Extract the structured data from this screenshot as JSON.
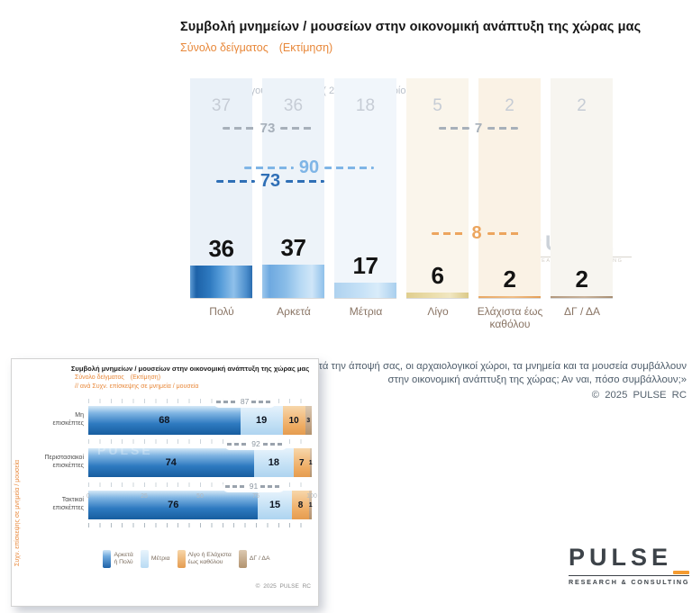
{
  "colors": {
    "accent_orange": "#E8883A",
    "bar_dark_blue": "#2E75B6",
    "bar_light_blue": "#BDD7EE",
    "bar_gold": "#E0CE8E",
    "bar_orange": "#ECA55E",
    "bar_tan": "#BFA183",
    "annotation_gray": "#A7B0BA",
    "annotation_blue_light": "#7FB5E6",
    "annotation_blue_dark": "#2F6FB6",
    "logo_orange": "#F59B30",
    "logo_dark": "#3D4349"
  },
  "header": {
    "title": "Συμβολή μνημείων / μουσείων στην οικονομική ανάπτυξη της χώρας μας",
    "sample_label": "Σύνολο δείγματος",
    "estimate_label": "(Εκτίμηση)"
  },
  "top_chart": {
    "previous_note": "Προηγούμενη έρευνα ( 20 - 28 Ιανουαρίου 2025 )",
    "columns": [
      {
        "label": "Πολύ",
        "value": 36,
        "previous": 37
      },
      {
        "label": "Αρκετά",
        "value": 37,
        "previous": 36
      },
      {
        "label": "Μέτρια",
        "value": 17,
        "previous": 18
      },
      {
        "label": "Λίγο",
        "value": 6,
        "previous": 5
      },
      {
        "label": "Ελάχιστα έως καθόλου",
        "value": 2,
        "previous": 2
      },
      {
        "label": "ΔΓ / ΔΑ",
        "value": 2,
        "previous": 2
      }
    ],
    "aggregates": {
      "previous_top2": 73,
      "previous_bottom2": 7,
      "current_top3": 90,
      "current_top2": 73,
      "current_bottom2": 8
    }
  },
  "question": {
    "line1": "«Κατά την άποψή σας, οι αρχαιολογικοί χώροι, τα μνημεία και τα μουσεία συμβάλλουν",
    "line2": "στην οικονομική ανάπτυξη της χώρας; Αν ναι, πόσο συμβάλλουν;»",
    "copyright": "© 2025 PULSE RC"
  },
  "bottom_chart": {
    "title": "Συμβολή μνημείων / μουσείων στην οικονομική ανάπτυξη της χώρας μας",
    "sample_label": "Σύνολο δείγματος",
    "estimate_label": "(Εκτίμηση)",
    "breakdown_label": "// ανά Συχν. επίσκεψης σε μνημεία / μουσεία",
    "rotated_axis_label": "Συχν. επίσκεψης σε μνημεία / μουσεία",
    "rows": [
      {
        "label_line1": "Μη",
        "label_line2": "επισκέπτες",
        "values": [
          68,
          19,
          10,
          3
        ],
        "sum_annotation": 87
      },
      {
        "label_line1": "Περιστασιακοί",
        "label_line2": "επισκέπτες",
        "values": [
          74,
          18,
          7,
          1
        ],
        "sum_annotation": 92
      },
      {
        "label_line1": "Τακτικοί",
        "label_line2": "επισκέπτες",
        "values": [
          76,
          15,
          8,
          1
        ],
        "sum_annotation": 91
      }
    ],
    "x_ticks": [
      "0",
      "25",
      "50",
      "75",
      "100"
    ],
    "legend": [
      {
        "line1": "Αρκετά",
        "line2": "ή Πολύ"
      },
      {
        "line1": "Μέτρια",
        "line2": ""
      },
      {
        "line1": "Λίγο ή Ελάχιστα",
        "line2": "έως καθόλου"
      },
      {
        "line1": "ΔΓ / ΔΑ",
        "line2": ""
      }
    ],
    "copyright": "© 2025 PULSE RC"
  },
  "logo": {
    "name": "PULSE",
    "tagline": "RESEARCH & CONSULTING"
  },
  "chart_data": [
    {
      "type": "bar",
      "title": "Συμβολή μνημείων / μουσείων στην οικονομική ανάπτυξη της χώρας μας",
      "subtitle": "Σύνολο δείγματος (Εκτίμηση)",
      "categories": [
        "Πολύ",
        "Αρκετά",
        "Μέτρια",
        "Λίγο",
        "Ελάχιστα έως καθόλου",
        "ΔΓ / ΔΑ"
      ],
      "series": [
        {
          "name": "Εκτίμηση (τρέχουσα έρευνα)",
          "values": [
            36,
            37,
            17,
            6,
            2,
            2
          ]
        },
        {
          "name": "Προηγούμενη έρευνα ( 20 - 28 Ιανουαρίου 2025 )",
          "values": [
            37,
            36,
            18,
            5,
            2,
            2
          ]
        }
      ],
      "annotations": [
        {
          "label": 73,
          "meaning": "Πολύ + Αρκετά (προηγούμενη)"
        },
        {
          "label": 7,
          "meaning": "Λίγο + Ελάχιστα έως καθόλου (προηγούμενη)"
        },
        {
          "label": 90,
          "meaning": "Πολύ + Αρκετά + Μέτρια (τρέχουσα)"
        },
        {
          "label": 73,
          "meaning": "Πολύ + Αρκετά (τρέχουσα)"
        },
        {
          "label": 8,
          "meaning": "Λίγο + Ελάχιστα έως καθόλου (τρέχουσα)"
        }
      ],
      "ylim": [
        0,
        100
      ],
      "grid": false,
      "legend_position": "none"
    },
    {
      "type": "bar",
      "orientation": "horizontal",
      "stacked": true,
      "title": "Συμβολή μνημείων / μουσείων στην οικονομική ανάπτυξη της χώρας μας",
      "subtitle": "Σύνολο δείγματος (Εκτίμηση) // ανά Συχν. επίσκεψης σε μνημεία / μουσεία",
      "ylabel": "Συχν. επίσκεψης σε μνημεία / μουσεία",
      "categories": [
        "Μη επισκέπτες",
        "Περιστασιακοί επισκέπτες",
        "Τακτικοί επισκέπτες"
      ],
      "series": [
        {
          "name": "Αρκετά ή Πολύ",
          "values": [
            68,
            74,
            76
          ]
        },
        {
          "name": "Μέτρια",
          "values": [
            19,
            18,
            15
          ]
        },
        {
          "name": "Λίγο ή Ελάχιστα έως καθόλου",
          "values": [
            10,
            7,
            8
          ]
        },
        {
          "name": "ΔΓ / ΔΑ",
          "values": [
            3,
            1,
            1
          ]
        }
      ],
      "sum_annotations": [
        87,
        92,
        91
      ],
      "xlim": [
        0,
        100
      ],
      "x_ticks": [
        0,
        25,
        50,
        75,
        100
      ],
      "grid": false,
      "legend_position": "bottom"
    }
  ]
}
